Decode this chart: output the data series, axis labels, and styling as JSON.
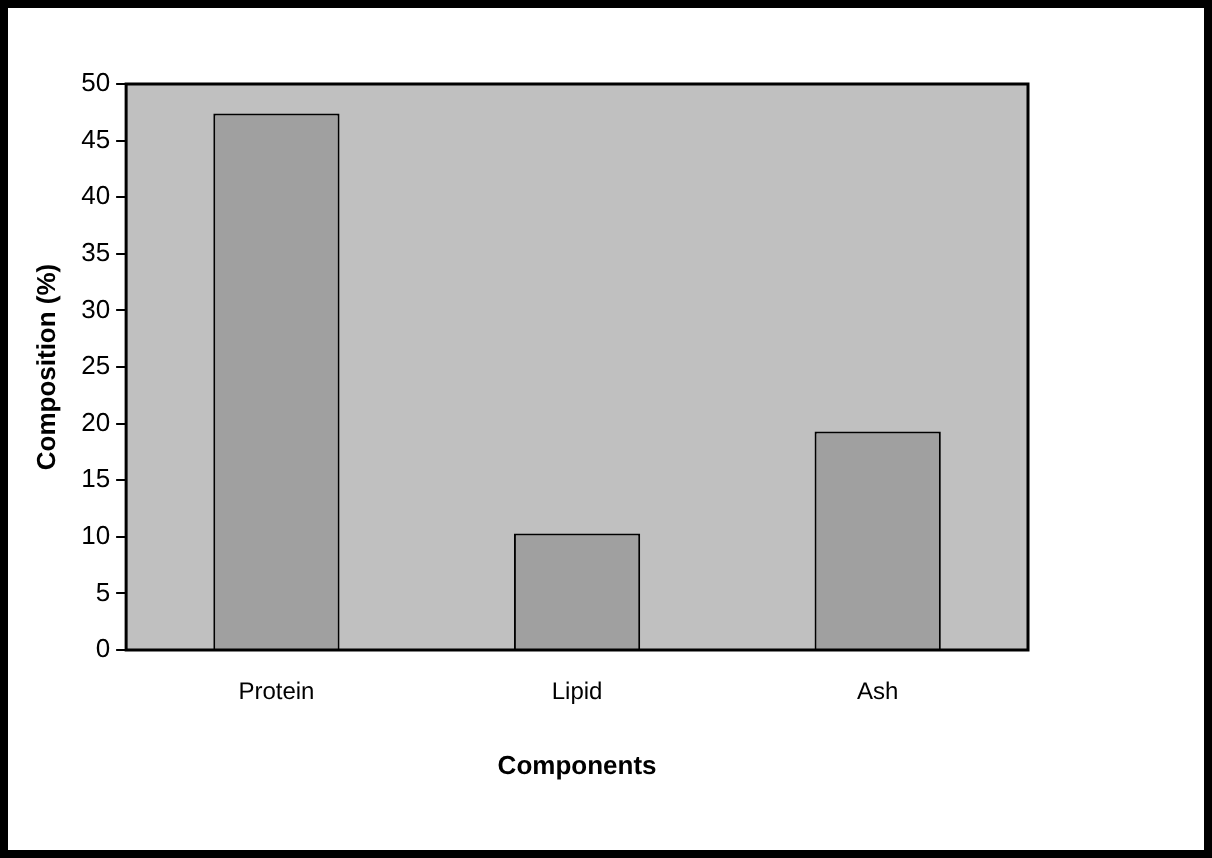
{
  "chart_data": {
    "type": "bar",
    "categories": [
      "Protein",
      "Lipid",
      "Ash"
    ],
    "values": [
      47.4,
      10.3,
      19.3
    ],
    "color": "#a0a0a0",
    "xlabel": "Components",
    "ylabel": "Composition (%)",
    "ylim": [
      0,
      50
    ],
    "yticks": [
      0,
      5,
      10,
      15,
      20,
      25,
      30,
      35,
      40,
      45,
      50
    ],
    "grid": false,
    "legend": false
  }
}
